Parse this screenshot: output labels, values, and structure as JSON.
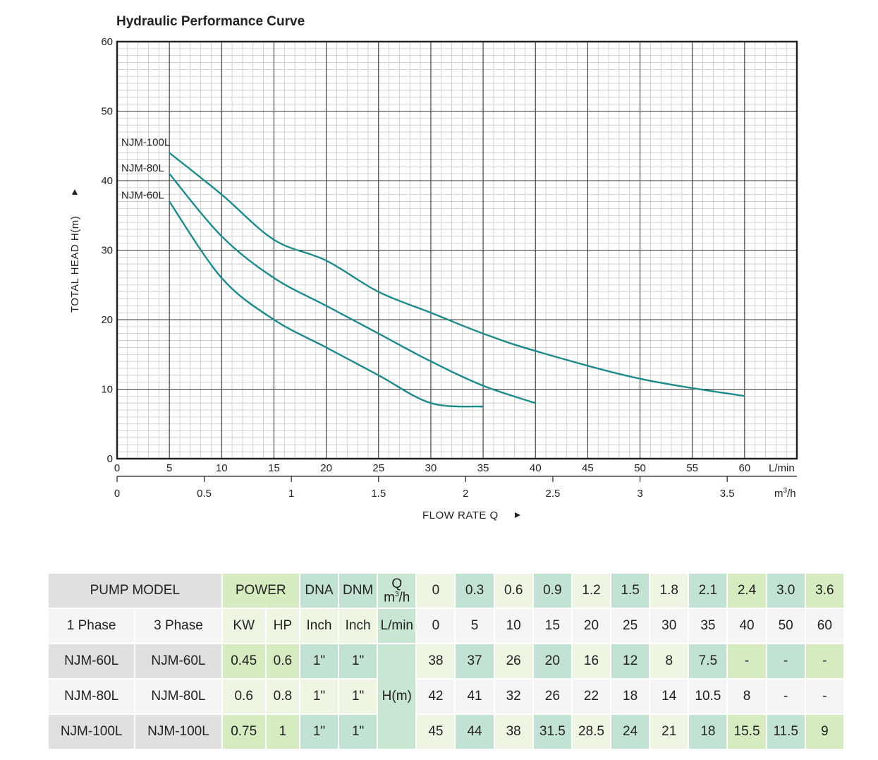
{
  "chart_data": {
    "type": "line",
    "title": "Hydraulic Performance Curve",
    "ylabel": "TOTAL HEAD H(m)",
    "xlabel": "FLOW RATE Q",
    "x_unit_primary": "L/min",
    "x_unit_secondary": "m³/h",
    "xlim": [
      0,
      65
    ],
    "ylim": [
      0,
      60
    ],
    "x_ticks": [
      "0",
      "5",
      "10",
      "15",
      "20",
      "25",
      "30",
      "35",
      "40",
      "45",
      "50",
      "55",
      "60"
    ],
    "x2_ticks": [
      "0",
      "0.5",
      "1",
      "1.5",
      "2",
      "2.5",
      "3",
      "3.5"
    ],
    "y_ticks": [
      "0",
      "10",
      "20",
      "30",
      "40",
      "50",
      "60"
    ],
    "grid": true,
    "series": [
      {
        "name": "NJM-100L",
        "color": "#1e8a8a",
        "x": [
          5,
          10,
          15,
          20,
          25,
          30,
          35,
          40,
          50,
          60
        ],
        "y": [
          44,
          38,
          31.5,
          28.5,
          24,
          21,
          18,
          15.5,
          11.5,
          9
        ]
      },
      {
        "name": "NJM-80L",
        "color": "#1e8a8a",
        "x": [
          5,
          10,
          15,
          20,
          25,
          30,
          35,
          40
        ],
        "y": [
          41,
          32,
          26,
          22,
          18,
          14,
          10.5,
          8
        ]
      },
      {
        "name": "NJM-60L",
        "color": "#1e8a8a",
        "x": [
          5,
          10,
          15,
          20,
          25,
          30,
          35
        ],
        "y": [
          37,
          26,
          20,
          16,
          12,
          8,
          7.5
        ]
      }
    ]
  },
  "table": {
    "pump_model": "PUMP MODEL",
    "power": "POWER",
    "dna": "DNA",
    "dnm": "DNM",
    "q_top": "Q",
    "q_unit": "m",
    "q_unit_sup": "3",
    "q_unit_tail": "/h",
    "phase1": "1 Phase",
    "phase3": "3 Phase",
    "kw": "KW",
    "hp": "HP",
    "inch1": "Inch",
    "inch2": "Inch",
    "lmin": "L/min",
    "hm": "H(m)",
    "q_m3h": [
      "0",
      "0.3",
      "0.6",
      "0.9",
      "1.2",
      "1.5",
      "1.8",
      "2.1",
      "2.4",
      "3.0",
      "3.6"
    ],
    "q_lmin": [
      "0",
      "5",
      "10",
      "15",
      "20",
      "25",
      "30",
      "35",
      "40",
      "50",
      "60"
    ],
    "rows": [
      {
        "model1": "NJM-60L",
        "model3": "NJM-60L",
        "kw": "0.45",
        "hp": "0.6",
        "dna": "1\"",
        "dnm": "1\"",
        "h": [
          "38",
          "37",
          "26",
          "20",
          "16",
          "12",
          "8",
          "7.5",
          "-",
          "-",
          "-"
        ]
      },
      {
        "model1": "NJM-80L",
        "model3": "NJM-80L",
        "kw": "0.6",
        "hp": "0.8",
        "dna": "1\"",
        "dnm": "1\"",
        "h": [
          "42",
          "41",
          "32",
          "26",
          "22",
          "18",
          "14",
          "10.5",
          "8",
          "-",
          "-"
        ]
      },
      {
        "model1": "NJM-100L",
        "model3": "NJM-100L",
        "kw": "0.75",
        "hp": "1",
        "dna": "1\"",
        "dnm": "1\"",
        "h": [
          "45",
          "44",
          "38",
          "31.5",
          "28.5",
          "24",
          "21",
          "18",
          "15.5",
          "11.5",
          "9"
        ]
      }
    ]
  }
}
